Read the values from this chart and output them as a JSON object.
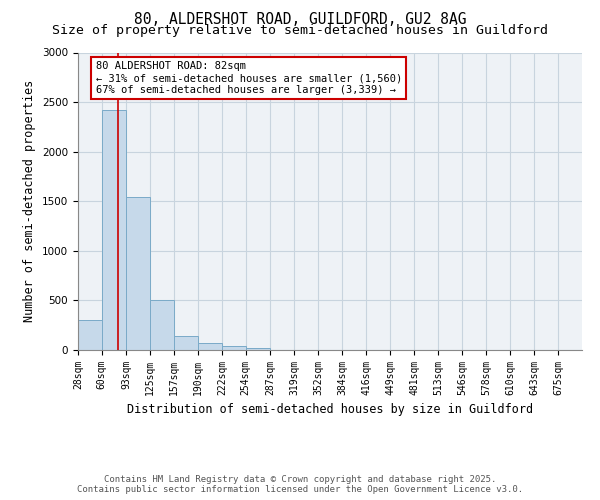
{
  "title_line1": "80, ALDERSHOT ROAD, GUILDFORD, GU2 8AG",
  "title_line2": "Size of property relative to semi-detached houses in Guildford",
  "xlabel": "Distribution of semi-detached houses by size in Guildford",
  "ylabel": "Number of semi-detached properties",
  "bins": [
    28,
    60,
    93,
    125,
    157,
    190,
    222,
    254,
    287,
    319,
    352,
    384,
    416,
    449,
    481,
    513,
    546,
    578,
    610,
    643,
    675
  ],
  "counts": [
    300,
    2420,
    1540,
    500,
    140,
    70,
    40,
    20,
    0,
    0,
    0,
    0,
    0,
    0,
    0,
    0,
    0,
    0,
    0,
    0
  ],
  "bar_color": "#c6d9ea",
  "bar_edge_color": "#7aaac8",
  "subject_value": 82,
  "subject_line_color": "#cc0000",
  "annotation_title": "80 ALDERSHOT ROAD: 82sqm",
  "annotation_line2": "← 31% of semi-detached houses are smaller (1,560)",
  "annotation_line3": "67% of semi-detached houses are larger (3,339) →",
  "annotation_box_color": "#cc0000",
  "ylim": [
    0,
    3000
  ],
  "yticks": [
    0,
    500,
    1000,
    1500,
    2000,
    2500,
    3000
  ],
  "grid_color": "#c8d4de",
  "bg_color": "#eef2f6",
  "footer_line1": "Contains HM Land Registry data © Crown copyright and database right 2025.",
  "footer_line2": "Contains public sector information licensed under the Open Government Licence v3.0.",
  "title_fontsize": 10.5,
  "subtitle_fontsize": 9.5,
  "axis_label_fontsize": 8.5,
  "tick_fontsize": 7,
  "annotation_fontsize": 7.5,
  "footer_fontsize": 6.5
}
